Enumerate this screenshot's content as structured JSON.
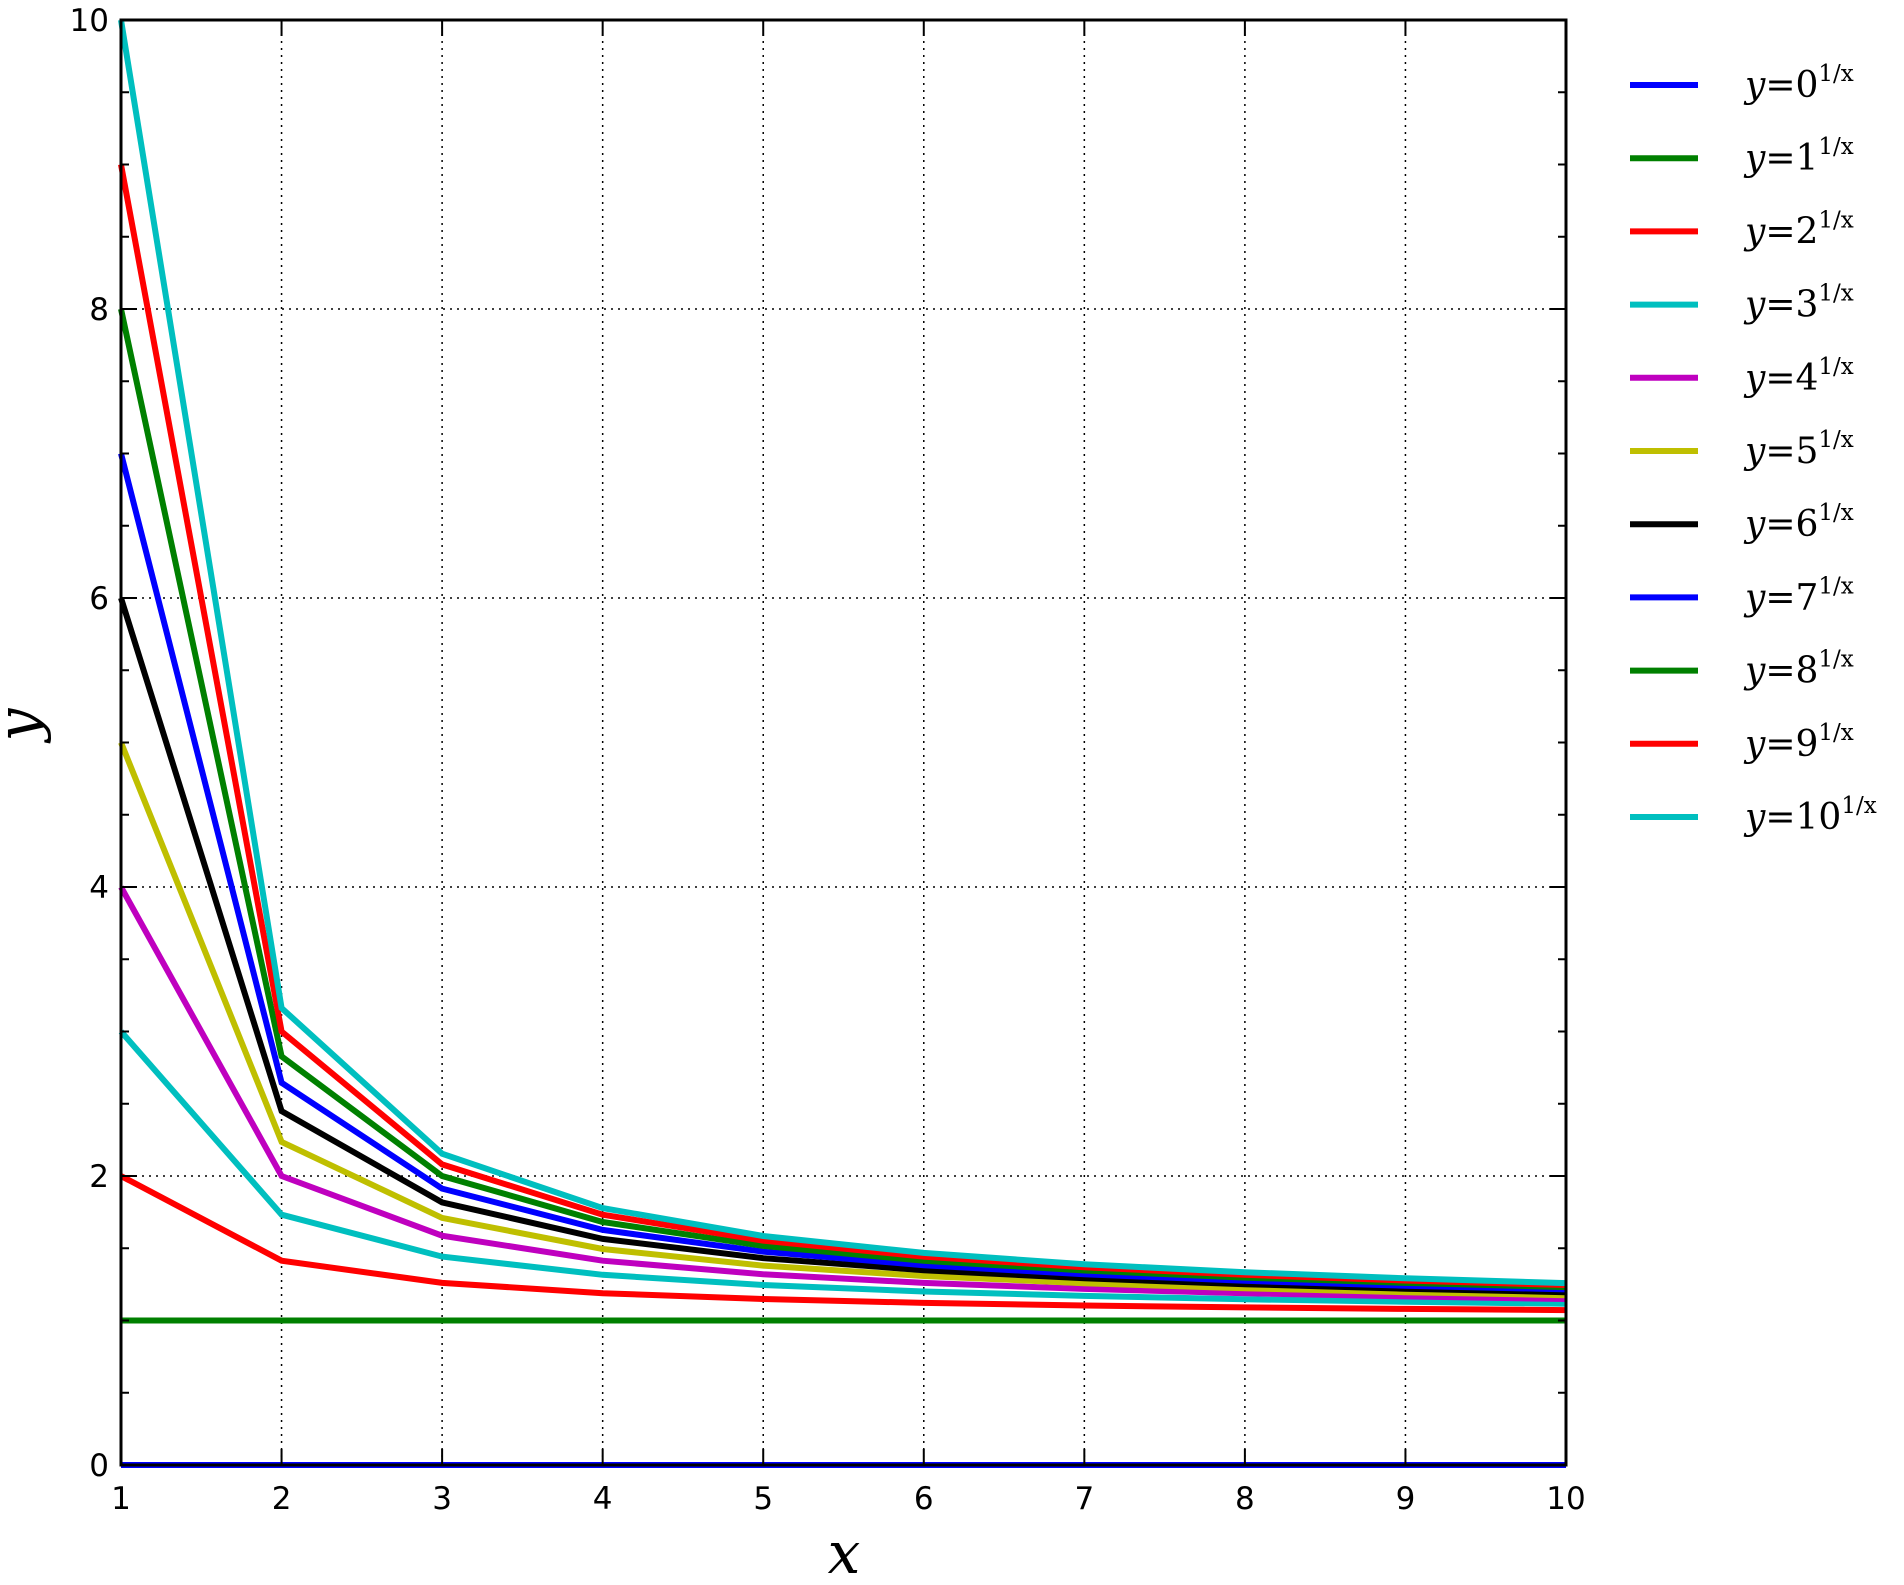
{
  "chart_data": {
    "type": "line",
    "xlabel": "x",
    "ylabel": "y",
    "xlim": [
      1,
      10
    ],
    "ylim": [
      0,
      10
    ],
    "x_ticks": [
      "1",
      "2",
      "3",
      "4",
      "5",
      "6",
      "7",
      "8",
      "9",
      "10"
    ],
    "y_ticks": [
      "0",
      "2",
      "4",
      "6",
      "8",
      "10"
    ],
    "grid": true,
    "grid_style": "dotted",
    "legend_position": "outside-right",
    "x": [
      1,
      2,
      3,
      4,
      5,
      6,
      7,
      8,
      9,
      10
    ],
    "series": [
      {
        "name": "y=0^{1/x}",
        "base": "0",
        "color": "#0000ff",
        "values": [
          0,
          0,
          0,
          0,
          0,
          0,
          0,
          0,
          0,
          0
        ]
      },
      {
        "name": "y=1^{1/x}",
        "base": "1",
        "color": "#008000",
        "values": [
          1,
          1,
          1,
          1,
          1,
          1,
          1,
          1,
          1,
          1
        ]
      },
      {
        "name": "y=2^{1/x}",
        "base": "2",
        "color": "#ff0000",
        "values": [
          2,
          1.414,
          1.26,
          1.189,
          1.149,
          1.122,
          1.104,
          1.091,
          1.08,
          1.072
        ]
      },
      {
        "name": "y=3^{1/x}",
        "base": "3",
        "color": "#00bfbf",
        "values": [
          3,
          1.732,
          1.442,
          1.316,
          1.246,
          1.201,
          1.17,
          1.147,
          1.13,
          1.116
        ]
      },
      {
        "name": "y=4^{1/x}",
        "base": "4",
        "color": "#bf00bf",
        "values": [
          4,
          2,
          1.587,
          1.414,
          1.32,
          1.26,
          1.219,
          1.189,
          1.167,
          1.149
        ]
      },
      {
        "name": "y=5^{1/x}",
        "base": "5",
        "color": "#bfbf00",
        "values": [
          5,
          2.236,
          1.71,
          1.495,
          1.38,
          1.308,
          1.258,
          1.223,
          1.196,
          1.175
        ]
      },
      {
        "name": "y=6^{1/x}",
        "base": "6",
        "color": "#000000",
        "values": [
          6,
          2.449,
          1.817,
          1.565,
          1.431,
          1.348,
          1.292,
          1.251,
          1.22,
          1.196
        ]
      },
      {
        "name": "y=7^{1/x}",
        "base": "7",
        "color": "#0000ff",
        "values": [
          7,
          2.646,
          1.913,
          1.627,
          1.476,
          1.383,
          1.32,
          1.275,
          1.241,
          1.215
        ]
      },
      {
        "name": "y=8^{1/x}",
        "base": "8",
        "color": "#008000",
        "values": [
          8,
          2.828,
          2,
          1.682,
          1.516,
          1.414,
          1.346,
          1.297,
          1.26,
          1.231
        ]
      },
      {
        "name": "y=9^{1/x}",
        "base": "9",
        "color": "#ff0000",
        "values": [
          9,
          3,
          2.08,
          1.732,
          1.552,
          1.442,
          1.369,
          1.316,
          1.277,
          1.246
        ]
      },
      {
        "name": "y=10^{1/x}",
        "base": "10",
        "color": "#00bfbf",
        "values": [
          10,
          3.162,
          2.154,
          1.778,
          1.585,
          1.468,
          1.389,
          1.334,
          1.292,
          1.259
        ]
      }
    ]
  }
}
